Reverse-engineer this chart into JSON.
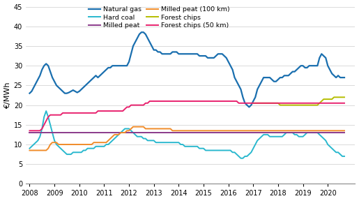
{
  "ylabel": "€/MWh",
  "ylim": [
    0,
    45
  ],
  "yticks": [
    0,
    5,
    10,
    15,
    20,
    25,
    30,
    35,
    40,
    45
  ],
  "background_color": "#ffffff",
  "grid_color": "#cccccc",
  "colors": {
    "Natural gas": "#1a6faf",
    "Hard coal": "#29b8ce",
    "Milled peat": "#8b3a8b",
    "Milled peat (100 km)": "#f08c2a",
    "Forest chips": "#b5bd00",
    "Forest chips (50 km)": "#e8226e"
  },
  "linewidths": {
    "Natural gas": 1.6,
    "Hard coal": 1.4,
    "Milled peat": 1.4,
    "Milled peat (100 km)": 1.4,
    "Forest chips": 1.4,
    "Forest chips (50 km)": 1.4
  },
  "xtick_years": [
    2008,
    2009,
    2010,
    2011,
    2012,
    2013,
    2014,
    2015,
    2016,
    2017,
    2018,
    2019,
    2020
  ],
  "start_year": 2008.0,
  "end_year": 2021.0,
  "figsize": [
    5.15,
    2.88
  ],
  "dpi": 100,
  "legend_order": [
    "Natural gas",
    "Hard coal",
    "Milled peat",
    "Milled peat (100 km)",
    "Forest chips",
    "Forest chips (50 km)"
  ]
}
